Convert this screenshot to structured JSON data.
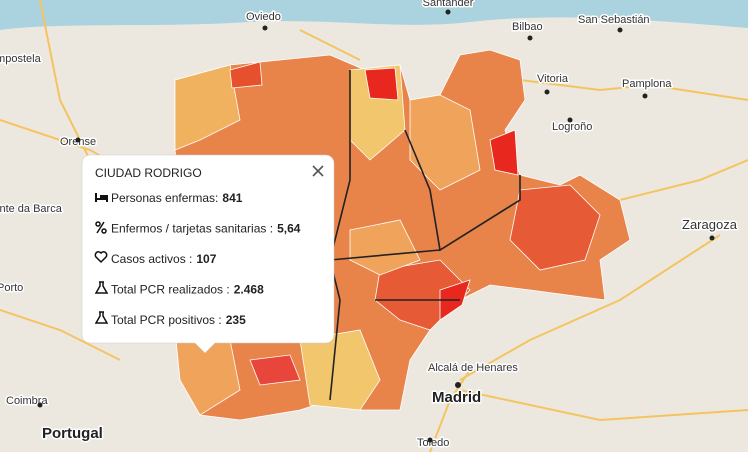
{
  "map": {
    "place_labels": [
      "Santander",
      "Bilbao",
      "San Sebastián",
      "Oviedo",
      "Vitoria",
      "Pamplona",
      "Logroño",
      "Orense",
      "Zaragoza",
      "Alcalá de Henares",
      "Madrid",
      "Coimbra",
      "Portugal",
      "Toledo",
      "Ponte da Barca",
      "Porto",
      "Compostela"
    ]
  },
  "popup": {
    "title": "CIUDAD RODRIGO",
    "rows": [
      {
        "label": "Personas enfermas:",
        "value": "841"
      },
      {
        "label": "Enfermos / tarjetas sanitarias :",
        "value": "5,64"
      },
      {
        "label": "Casos activos :",
        "value": "107"
      },
      {
        "label": "Total PCR realizados :",
        "value": "2.468"
      },
      {
        "label": "Total PCR positivos :",
        "value": "235"
      }
    ]
  }
}
